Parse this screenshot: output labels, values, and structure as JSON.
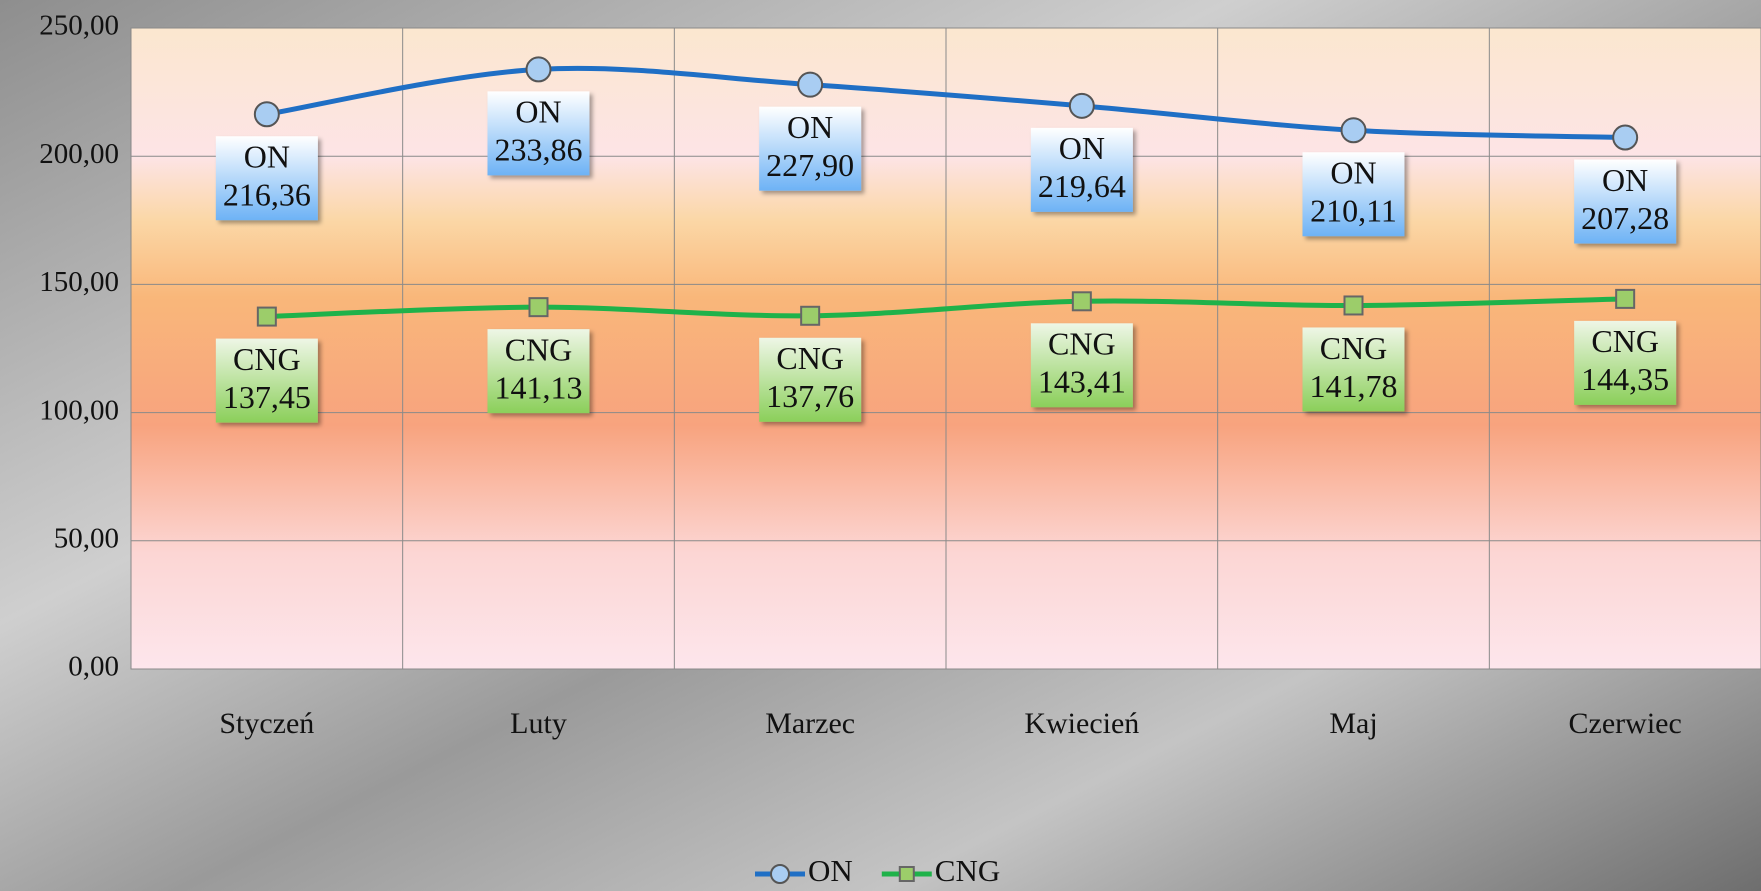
{
  "chart_data": {
    "type": "line",
    "categories": [
      "Styczeń",
      "Luty",
      "Marzec",
      "Kwiecień",
      "Maj",
      "Czerwiec"
    ],
    "series": [
      {
        "name": "ON",
        "color": "#1f6fc5",
        "values": [
          216.36,
          233.86,
          227.9,
          219.64,
          210.11,
          207.28
        ],
        "value_labels": [
          "216,36",
          "233,86",
          "227,90",
          "219,64",
          "210,11",
          "207,28"
        ]
      },
      {
        "name": "CNG",
        "color": "#1fb24a",
        "values": [
          137.45,
          141.13,
          137.76,
          143.41,
          141.78,
          144.35
        ],
        "value_labels": [
          "137,45",
          "141,13",
          "137,76",
          "143,41",
          "141,78",
          "144,35"
        ]
      }
    ],
    "ylim": [
      0,
      250
    ],
    "yticks": [
      {
        "value": 0,
        "label": "0,00"
      },
      {
        "value": 50,
        "label": "50,00"
      },
      {
        "value": 100,
        "label": "100,00"
      },
      {
        "value": 150,
        "label": "150,00"
      },
      {
        "value": 200,
        "label": "200,00"
      },
      {
        "value": 250,
        "label": "250,00"
      }
    ],
    "grid": true,
    "legend": "bottom"
  }
}
